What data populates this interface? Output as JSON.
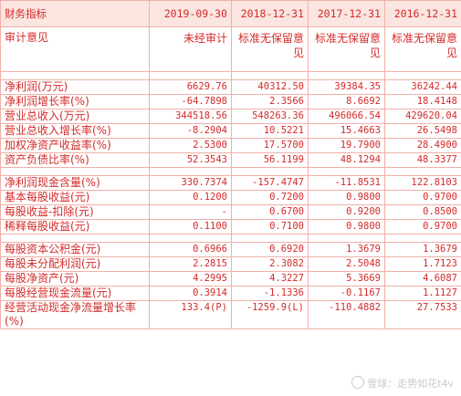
{
  "header": {
    "label": "财务指标",
    "periods": [
      "2019-09-30",
      "2018-12-31",
      "2017-12-31",
      "2016-12-31"
    ]
  },
  "audit_opinion": {
    "label": "审计意见",
    "values": [
      "未经审计",
      "标准无保留意见",
      "标准无保留意见",
      "标准无保留意见"
    ]
  },
  "groups": [
    [
      {
        "label": "净利润(万元)",
        "values": [
          "6629.76",
          "40312.50",
          "39384.35",
          "36242.44"
        ]
      },
      {
        "label": "净利润增长率(%)",
        "values": [
          "-64.7898",
          "2.3566",
          "8.6692",
          "18.4148"
        ]
      },
      {
        "label": "营业总收入(万元)",
        "values": [
          "344518.56",
          "548263.36",
          "496066.54",
          "429620.04"
        ]
      },
      {
        "label": "营业总收入增长率(%)",
        "values": [
          "-8.2904",
          "10.5221",
          "15.4663",
          "26.5498"
        ]
      },
      {
        "label": "加权净资产收益率(%)",
        "values": [
          "2.5300",
          "17.5700",
          "19.7900",
          "28.4900"
        ]
      },
      {
        "label": "资产负债比率(%)",
        "values": [
          "52.3543",
          "56.1199",
          "48.1294",
          "48.3377"
        ]
      }
    ],
    [
      {
        "label": "净利润现金含量(%)",
        "values": [
          "330.7374",
          "-157.4747",
          "-11.8531",
          "122.8103"
        ]
      },
      {
        "label": "基本每股收益(元)",
        "values": [
          "0.1200",
          "0.7200",
          "0.9800",
          "0.9700"
        ]
      },
      {
        "label": "每股收益-扣除(元)",
        "values": [
          "-",
          "0.6700",
          "0.9200",
          "0.8500"
        ]
      },
      {
        "label": "稀释每股收益(元)",
        "values": [
          "0.1100",
          "0.7100",
          "0.9800",
          "0.9700"
        ]
      }
    ],
    [
      {
        "label": "每股资本公积金(元)",
        "values": [
          "0.6966",
          "0.6920",
          "1.3679",
          "1.3679"
        ]
      },
      {
        "label": "每股未分配利润(元)",
        "values": [
          "2.2815",
          "2.3082",
          "2.5048",
          "1.7123"
        ]
      },
      {
        "label": "每股净资产(元)",
        "values": [
          "4.2995",
          "4.3227",
          "5.3669",
          "4.6087"
        ]
      },
      {
        "label": "每股经营现金流量(元)",
        "values": [
          "0.3914",
          "-1.1336",
          "-0.1167",
          "1.1127"
        ]
      },
      {
        "label": "经营活动现金净流量增长率(%)",
        "values": [
          "133.4(P)",
          "-1259.9(L)",
          "-110.4882",
          "27.7533"
        ]
      }
    ]
  ],
  "watermark": {
    "text": "雪球：走势如花t4v"
  },
  "colors": {
    "text": "#d42a2a",
    "border": "#f0b0a8",
    "header_bg": "#fbe5e0"
  }
}
